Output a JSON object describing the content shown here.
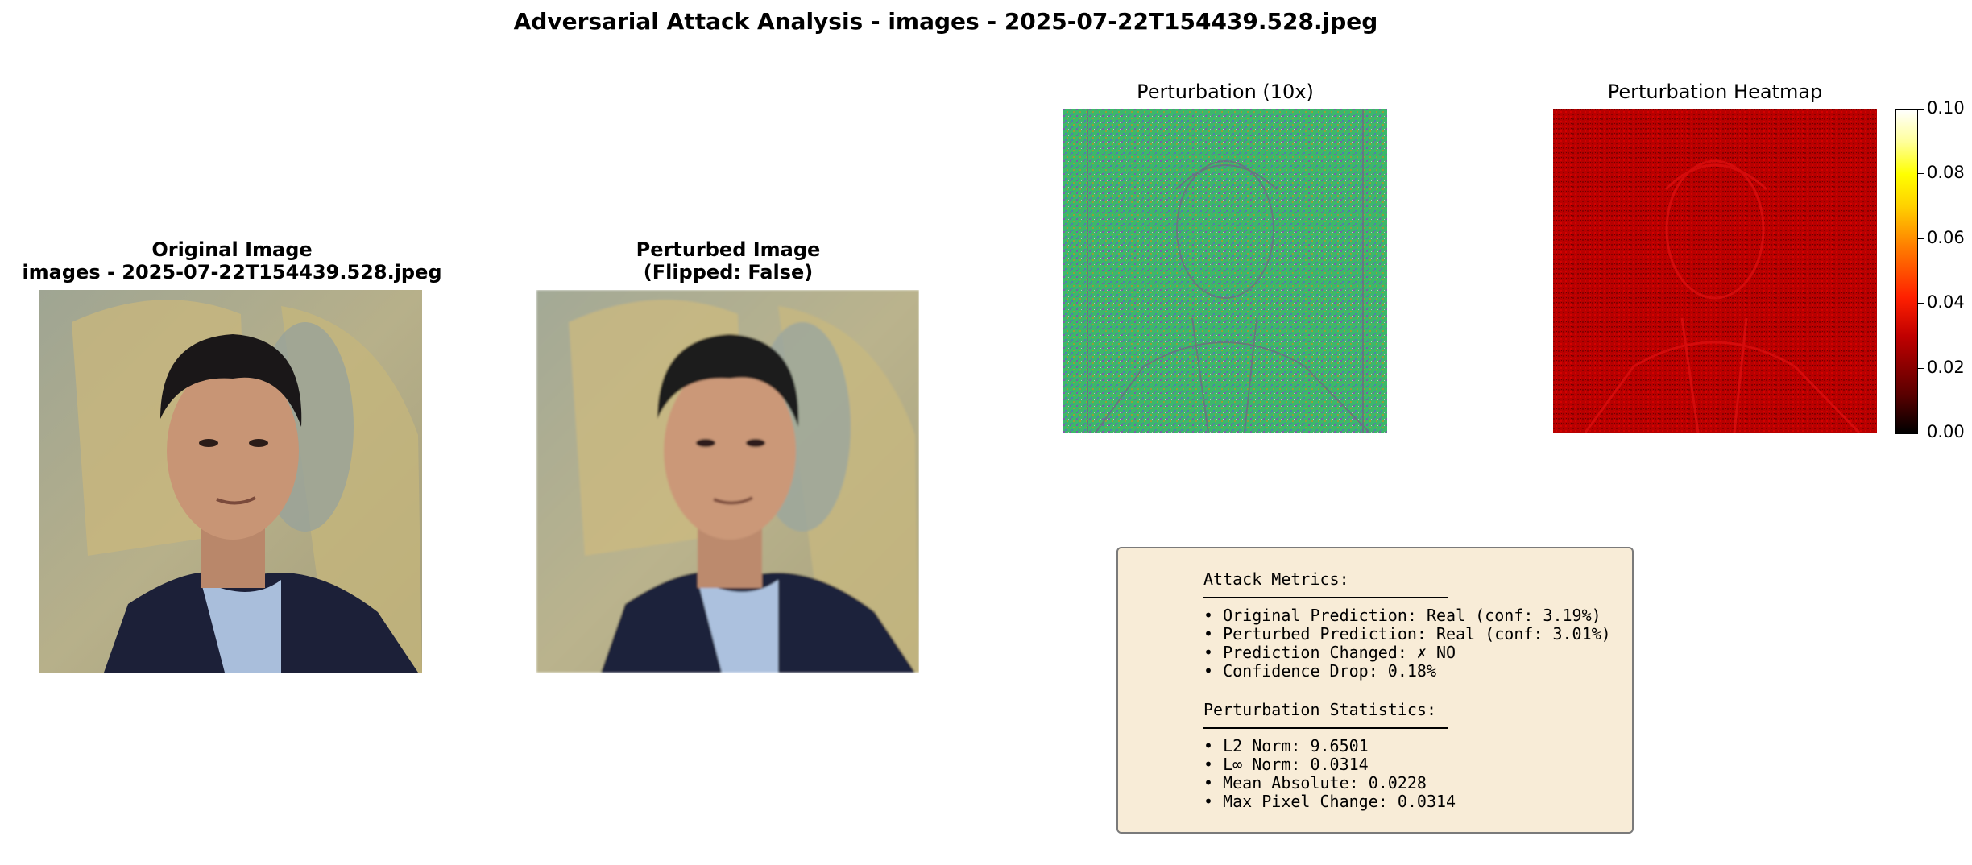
{
  "suptitle": "Adversarial Attack Analysis - images - 2025-07-22T154439.528.jpeg",
  "panels": {
    "original": {
      "title_line1": "Original Image",
      "title_line2": "images - 2025-07-22T154439.528.jpeg"
    },
    "perturbed": {
      "title_line1": "Perturbed Image",
      "title_line2": "(Flipped: False)"
    },
    "perturbation": {
      "title": "Perturbation (10x)"
    },
    "heatmap": {
      "title": "Perturbation Heatmap"
    }
  },
  "colorbar": {
    "colormap": "hot",
    "range": [
      0.0,
      0.1
    ],
    "ticks": [
      "0.10",
      "0.08",
      "0.06",
      "0.04",
      "0.02",
      "0.00"
    ]
  },
  "metrics": {
    "attack_header": "Attack Metrics:",
    "attack_items": [
      "• Original Prediction: Real (conf: 3.19%)",
      "• Perturbed Prediction: Real (conf: 3.01%)",
      "• Prediction Changed: ✗ NO",
      "• Confidence Drop: 0.18%"
    ],
    "stats_header": "Perturbation Statistics:",
    "stats_items": [
      "• L2 Norm: 9.6501",
      "• L∞ Norm: 0.0314",
      "• Mean Absolute: 0.0228",
      "• Max Pixel Change: 0.0314"
    ]
  },
  "colors": {
    "metrics_box_bg": "#f8ecd7",
    "perturbation_base": "#3cb86a",
    "heatmap_base": "#c00000"
  }
}
